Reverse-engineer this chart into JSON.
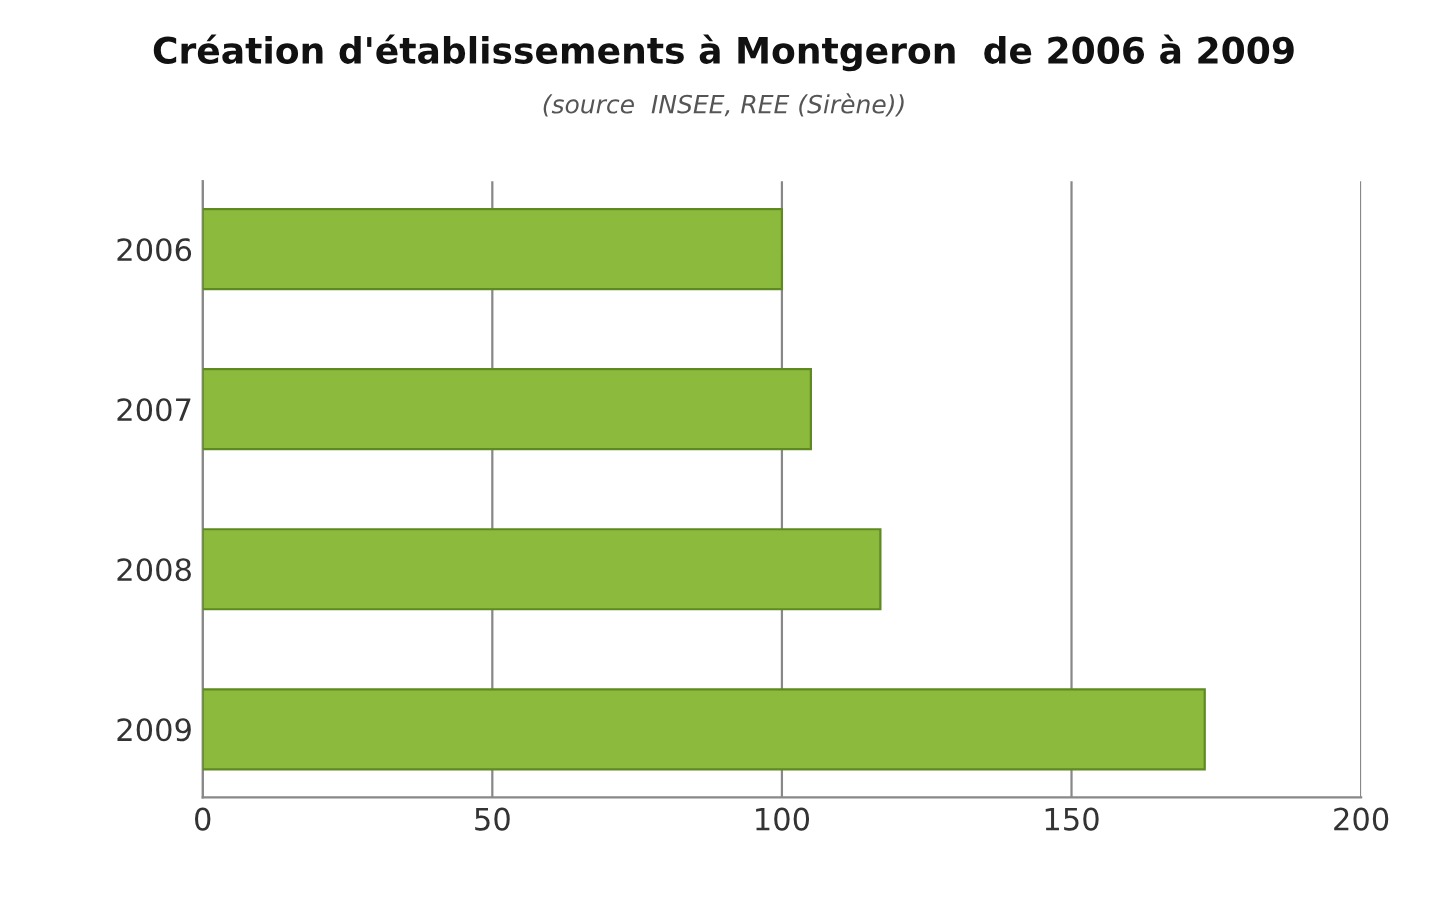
{
  "chart_data": {
    "type": "bar",
    "orientation": "horizontal",
    "title": "Création d'établissements à Montgeron  de 2006 à 2009",
    "subtitle": "(source  INSEE, REE (Sirène))",
    "categories": [
      "2006",
      "2007",
      "2008",
      "2009"
    ],
    "values": [
      100,
      105,
      117,
      173
    ],
    "color": "#8cba3c",
    "xlim": [
      0,
      200
    ],
    "xticks": [
      0,
      50,
      100,
      150,
      200
    ],
    "grid": "x",
    "legend": false
  }
}
